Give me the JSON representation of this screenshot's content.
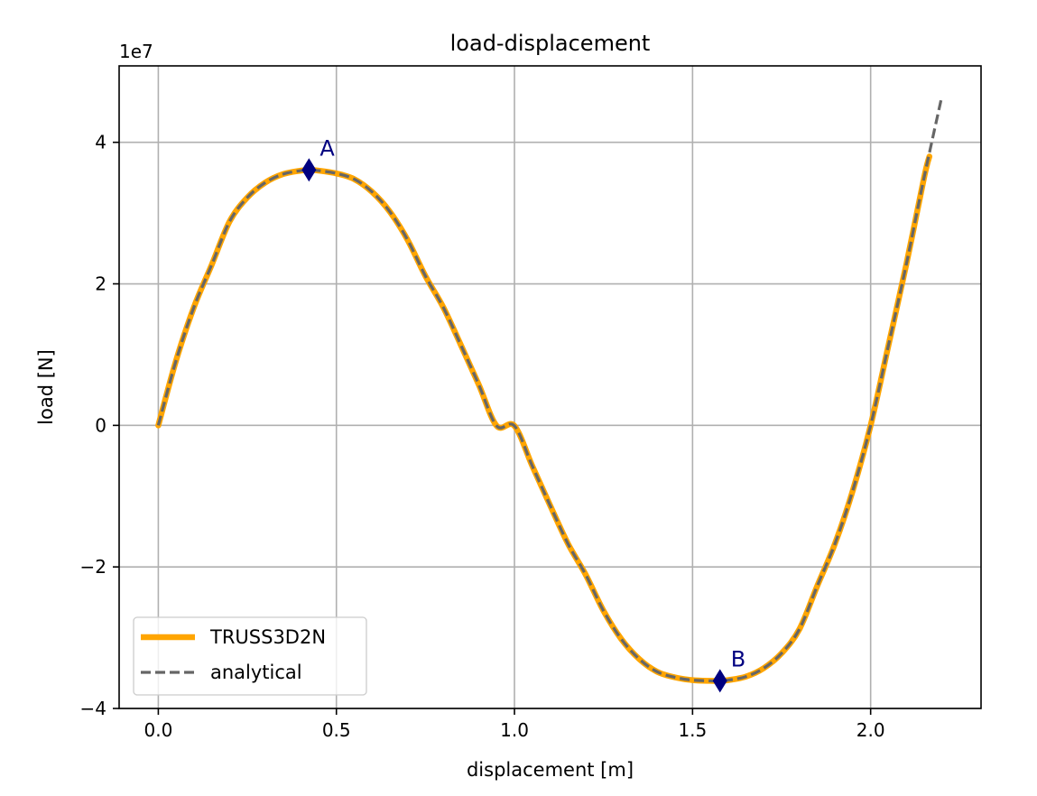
{
  "chart_data": {
    "type": "line",
    "title": "load-displacement",
    "xlabel": "displacement [m]",
    "ylabel": "load [N]",
    "y_offset_label": "1e7",
    "y_scale_exponent": 7,
    "xlim": [
      -0.11,
      2.31
    ],
    "ylim": [
      -40000000.0,
      50800000.0
    ],
    "x_ticks": [
      0.0,
      0.5,
      1.0,
      1.5,
      2.0
    ],
    "x_tick_labels": [
      "0.0",
      "0.5",
      "1.0",
      "1.5",
      "2.0"
    ],
    "y_ticks": [
      -40000000.0,
      -20000000.0,
      0,
      20000000.0,
      40000000.0
    ],
    "y_tick_labels": [
      "−4",
      "−2",
      "0",
      "2",
      "4"
    ],
    "grid": true,
    "legend_position": "lower-left",
    "series": [
      {
        "name": "TRUSS3D2N",
        "color": "#FFA500",
        "style": "solid",
        "x": [
          0.0,
          0.05,
          0.1,
          0.15,
          0.2,
          0.25,
          0.3,
          0.35,
          0.4,
          0.423,
          0.45,
          0.5,
          0.55,
          0.6,
          0.65,
          0.7,
          0.75,
          0.8,
          0.85,
          0.9,
          0.95,
          1.0,
          1.05,
          1.1,
          1.15,
          1.2,
          1.25,
          1.3,
          1.35,
          1.4,
          1.45,
          1.5,
          1.55,
          1.577,
          1.6,
          1.65,
          1.7,
          1.75,
          1.8,
          1.85,
          1.9,
          1.95,
          2.0,
          2.05,
          2.1,
          2.15,
          2.165
        ],
        "y": [
          0,
          9190000.0,
          16700000.0,
          22700000.0,
          28800000.0,
          32200000.0,
          34300000.0,
          35500000.0,
          36000000.0,
          36100000.0,
          36000000.0,
          35600000.0,
          34800000.0,
          33000000.0,
          30200000.0,
          26200000.0,
          21100000.0,
          16700000.0,
          11300000.0,
          5730000.0,
          -72000.0,
          -72000.0,
          -5730000.0,
          -11300000.0,
          -16700000.0,
          -21100000.0,
          -26200000.0,
          -30200000.0,
          -33000000.0,
          -34800000.0,
          -35600000.0,
          -36000000.0,
          -36100000.0,
          -36100000.0,
          -36000000.0,
          -35500000.0,
          -34300000.0,
          -32200000.0,
          -28800000.0,
          -22700000.0,
          -16700000.0,
          -9190000.0,
          0,
          11300000.0,
          22700000.0,
          35000000.0,
          38000000.0
        ]
      },
      {
        "name": "analytical",
        "color": "#666666",
        "style": "dashed",
        "x": [
          0.0,
          0.05,
          0.1,
          0.15,
          0.2,
          0.25,
          0.3,
          0.35,
          0.4,
          0.423,
          0.45,
          0.5,
          0.55,
          0.6,
          0.65,
          0.7,
          0.75,
          0.8,
          0.85,
          0.9,
          0.95,
          1.0,
          1.05,
          1.1,
          1.15,
          1.2,
          1.25,
          1.3,
          1.35,
          1.4,
          1.45,
          1.5,
          1.55,
          1.577,
          1.6,
          1.65,
          1.7,
          1.75,
          1.8,
          1.85,
          1.9,
          1.95,
          2.0,
          2.05,
          2.1,
          2.15,
          2.2
        ],
        "y": [
          0,
          9190000.0,
          16700000.0,
          22700000.0,
          28800000.0,
          32200000.0,
          34300000.0,
          35500000.0,
          36000000.0,
          36100000.0,
          36000000.0,
          35600000.0,
          34800000.0,
          33000000.0,
          30200000.0,
          26200000.0,
          21100000.0,
          16700000.0,
          11300000.0,
          5730000.0,
          -72000.0,
          -72000.0,
          -5730000.0,
          -11300000.0,
          -16700000.0,
          -21100000.0,
          -26200000.0,
          -30200000.0,
          -33000000.0,
          -34800000.0,
          -35600000.0,
          -36000000.0,
          -36100000.0,
          -36100000.0,
          -36000000.0,
          -35500000.0,
          -34300000.0,
          -32200000.0,
          -28800000.0,
          -22700000.0,
          -16700000.0,
          -9190000.0,
          0,
          11300000.0,
          22700000.0,
          35000000.0,
          46500000.0
        ]
      }
    ],
    "annotations": [
      {
        "label": "A",
        "x": 0.423,
        "y": 36100000.0,
        "marker": "diamond",
        "color": "#000080"
      },
      {
        "label": "B",
        "x": 1.577,
        "y": -36100000.0,
        "marker": "diamond",
        "color": "#000080"
      }
    ]
  }
}
